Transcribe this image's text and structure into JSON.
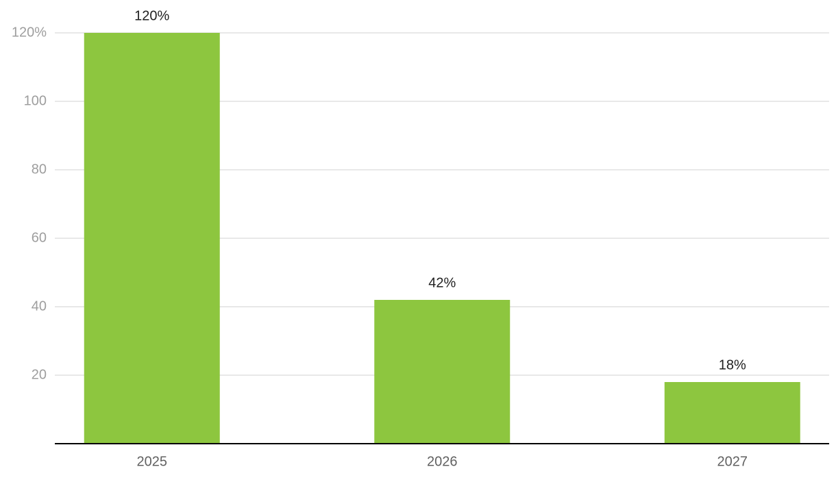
{
  "chart_data": {
    "type": "bar",
    "categories": [
      "2025",
      "2026",
      "2027"
    ],
    "values": [
      120,
      42,
      18
    ],
    "value_labels": [
      "120%",
      "42%",
      "18%"
    ],
    "color": "#8dc63f",
    "ylim": [
      0,
      120
    ],
    "yticks": [
      20,
      40,
      60,
      80,
      100,
      {
        "value": 120,
        "label": "120%"
      }
    ],
    "grid": true
  }
}
